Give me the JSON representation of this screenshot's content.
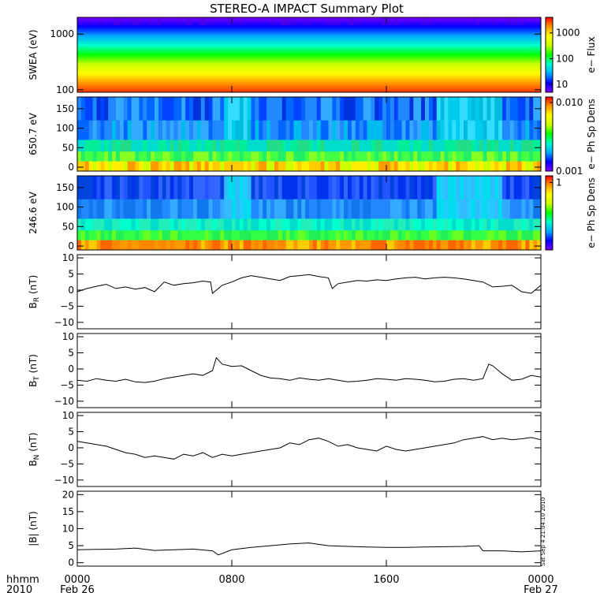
{
  "title": "STEREO-A IMPACT Summary Plot",
  "x_axis": {
    "row1_label": "hhmm",
    "row2_label": "2010",
    "ticks": [
      {
        "hours": 0,
        "time": "0000",
        "date": "Feb 26"
      },
      {
        "hours": 8,
        "time": "0800",
        "date": ""
      },
      {
        "hours": 16,
        "time": "1600",
        "date": ""
      },
      {
        "hours": 24,
        "time": "0000",
        "date": "Feb 27"
      }
    ],
    "range_hours": [
      0,
      24
    ]
  },
  "timestamp_note": "Sat Sep  4 21:04:10 2010",
  "chart_data": [
    {
      "type": "heatmap",
      "ylabel": "SWEA (eV)",
      "yscale": "log",
      "ylim": [
        90,
        2000
      ],
      "yticks": [
        {
          "v": 100,
          "label": "100"
        },
        {
          "v": 1000,
          "label": "1000"
        }
      ],
      "colorbar": {
        "label": "e− Flux",
        "scale": "log",
        "range": [
          5,
          4000
        ],
        "ticks": [
          {
            "v": 10,
            "label": "10"
          },
          {
            "v": 100,
            "label": "100"
          },
          {
            "v": 1000,
            "label": "1000"
          }
        ],
        "colors": [
          "#7f00ff",
          "#0000ff",
          "#00aaff",
          "#00ffcc",
          "#00ff00",
          "#ccff00",
          "#ffff00",
          "#ff9900",
          "#ff0000"
        ]
      },
      "bands_top_to_bottom": [
        "#7f00ff",
        "#0000ff",
        "#00aaff",
        "#00ffcc",
        "#00ff00",
        "#ccff00",
        "#ffff00",
        "#ff9900",
        "#ff3300"
      ]
    },
    {
      "type": "heatmap",
      "ylabel": "650.7 eV",
      "ylim": [
        -10,
        180
      ],
      "yticks": [
        {
          "v": 0,
          "label": "0"
        },
        {
          "v": 50,
          "label": "50"
        },
        {
          "v": 100,
          "label": "100"
        },
        {
          "v": 150,
          "label": "150"
        }
      ],
      "colorbar": {
        "label": "e− Ph Sp Dens",
        "scale": "log",
        "range": [
          0.001,
          0.012
        ],
        "ticks": [
          {
            "v": 0.001,
            "label": "0.001"
          },
          {
            "v": 0.01,
            "label": "0.010"
          }
        ],
        "colors": [
          "#7f00ff",
          "#0000ff",
          "#00aaff",
          "#00ffcc",
          "#00ff00",
          "#ccff00",
          "#ffff00",
          "#ff9900",
          "#ff0000"
        ]
      }
    },
    {
      "type": "heatmap",
      "ylabel": "246.6 eV",
      "ylim": [
        -10,
        180
      ],
      "yticks": [
        {
          "v": 0,
          "label": "0"
        },
        {
          "v": 50,
          "label": "50"
        },
        {
          "v": 100,
          "label": "100"
        },
        {
          "v": 150,
          "label": "150"
        }
      ],
      "colorbar": {
        "label": "e− Ph Sp Dens",
        "scale": "linear",
        "range": [
          0,
          1.1
        ],
        "ticks": [
          {
            "v": 1,
            "label": "1"
          }
        ],
        "colors": [
          "#7f00ff",
          "#0000ff",
          "#00aaff",
          "#00ffcc",
          "#00ff00",
          "#ccff00",
          "#ffff00",
          "#ff9900",
          "#ff0000"
        ]
      }
    },
    {
      "type": "line",
      "ylabel_main": "B",
      "ylabel_sub": "R",
      "ylabel_unit": " (nT)",
      "ylim": [
        -12,
        11
      ],
      "yticks": [
        {
          "v": -10,
          "label": "−10"
        },
        {
          "v": -5,
          "label": "−5"
        },
        {
          "v": 0,
          "label": "0"
        },
        {
          "v": 5,
          "label": "5"
        },
        {
          "v": 10,
          "label": "10"
        }
      ],
      "x": [
        0,
        0.5,
        1,
        1.5,
        2,
        2.5,
        3,
        3.5,
        4,
        4.5,
        5,
        5.5,
        6,
        6.5,
        6.9,
        7,
        7.5,
        8,
        8.5,
        9,
        9.5,
        10,
        10.5,
        11,
        11.5,
        12,
        12.5,
        13,
        13.2,
        13.5,
        14,
        14.5,
        15,
        15.5,
        16,
        16.5,
        17,
        17.5,
        18,
        18.5,
        19,
        19.5,
        20,
        20.5,
        21,
        21.5,
        22,
        22.5,
        23,
        23.5,
        24
      ],
      "y": [
        -0.5,
        0.5,
        1.2,
        1.8,
        0.5,
        1,
        0.3,
        0.8,
        -0.5,
        2.5,
        1.5,
        2,
        2.3,
        2.8,
        2.5,
        -1,
        1.5,
        2.5,
        3.8,
        4.5,
        4,
        3.5,
        3,
        4.2,
        4.5,
        4.8,
        4.2,
        3.8,
        0.5,
        2,
        2.5,
        3,
        2.8,
        3.2,
        3,
        3.5,
        3.8,
        4,
        3.5,
        3.8,
        4,
        3.8,
        3.5,
        3,
        2.5,
        1,
        1.2,
        1.5,
        -0.5,
        -1,
        1.5
      ]
    },
    {
      "type": "line",
      "ylabel_main": "B",
      "ylabel_sub": "T",
      "ylabel_unit": " (nT)",
      "ylim": [
        -12,
        11
      ],
      "yticks": [
        {
          "v": -10,
          "label": "−10"
        },
        {
          "v": -5,
          "label": "−5"
        },
        {
          "v": 0,
          "label": "0"
        },
        {
          "v": 5,
          "label": "5"
        },
        {
          "v": 10,
          "label": "10"
        }
      ],
      "x": [
        0,
        0.5,
        1,
        1.5,
        2,
        2.5,
        3,
        3.5,
        4,
        4.5,
        5,
        5.5,
        6,
        6.5,
        7,
        7.2,
        7.5,
        8,
        8.5,
        9,
        9.5,
        10,
        10.5,
        11,
        11.5,
        12,
        12.5,
        13,
        13.5,
        14,
        14.5,
        15,
        15.5,
        16,
        16.5,
        17,
        17.5,
        18,
        18.5,
        19,
        19.5,
        20,
        20.5,
        21,
        21.3,
        21.5,
        22,
        22.5,
        23,
        23.5,
        24
      ],
      "y": [
        -3.5,
        -3.8,
        -3,
        -3.5,
        -3.8,
        -3.2,
        -4,
        -4.2,
        -3.8,
        -3,
        -2.5,
        -2,
        -1.5,
        -2,
        -0.5,
        3.5,
        1.5,
        0.8,
        1,
        -0.5,
        -2,
        -2.8,
        -3,
        -3.5,
        -2.8,
        -3.2,
        -3.5,
        -3,
        -3.5,
        -4,
        -3.8,
        -3.5,
        -3,
        -3.2,
        -3.5,
        -3,
        -3.2,
        -3.5,
        -4,
        -3.8,
        -3.2,
        -3,
        -3.5,
        -3,
        1.5,
        1,
        -1.5,
        -3.5,
        -3.2,
        -2,
        -2.5
      ]
    },
    {
      "type": "line",
      "ylabel_main": "B",
      "ylabel_sub": "N",
      "ylabel_unit": " (nT)",
      "ylim": [
        -12,
        11
      ],
      "yticks": [
        {
          "v": -10,
          "label": "−10"
        },
        {
          "v": -5,
          "label": "−5"
        },
        {
          "v": 0,
          "label": "0"
        },
        {
          "v": 5,
          "label": "5"
        },
        {
          "v": 10,
          "label": "10"
        }
      ],
      "x": [
        0,
        0.5,
        1,
        1.5,
        2,
        2.5,
        3,
        3.5,
        4,
        4.5,
        5,
        5.5,
        6,
        6.5,
        7,
        7.5,
        8,
        8.5,
        9,
        9.5,
        10,
        10.5,
        11,
        11.5,
        12,
        12.5,
        13,
        13.5,
        14,
        14.5,
        15,
        15.5,
        16,
        16.5,
        17,
        17.5,
        18,
        18.5,
        19,
        19.5,
        20,
        20.5,
        21,
        21.5,
        22,
        22.5,
        23,
        23.5,
        24
      ],
      "y": [
        2,
        1.5,
        1,
        0.5,
        -0.5,
        -1.5,
        -2,
        -3,
        -2.5,
        -3,
        -3.5,
        -2,
        -2.5,
        -1.5,
        -3,
        -2,
        -2.5,
        -2,
        -1.5,
        -1,
        -0.5,
        0,
        1.5,
        1,
        2.5,
        3,
        2,
        0.5,
        1,
        0,
        -0.5,
        -1,
        0.5,
        -0.5,
        -1,
        -0.5,
        0,
        0.5,
        1,
        1.5,
        2.5,
        3,
        3.5,
        2.5,
        3,
        2.5,
        2.8,
        3.2,
        2.5
      ]
    },
    {
      "type": "line",
      "ylabel": "|B| (nT)",
      "ylim": [
        -1,
        21
      ],
      "yticks": [
        {
          "v": 0,
          "label": "0"
        },
        {
          "v": 5,
          "label": "5"
        },
        {
          "v": 10,
          "label": "10"
        },
        {
          "v": 15,
          "label": "15"
        },
        {
          "v": 20,
          "label": "20"
        }
      ],
      "x": [
        0,
        1,
        2,
        3,
        4,
        5,
        6,
        7,
        7.3,
        8,
        9,
        10,
        11,
        12,
        13,
        14,
        15,
        16,
        17,
        18,
        19,
        20,
        20.8,
        21,
        22,
        23,
        24
      ],
      "y": [
        3.8,
        3.9,
        4,
        4.3,
        3.6,
        3.8,
        4,
        3.5,
        2.3,
        3.8,
        4.5,
        5,
        5.5,
        5.8,
        5,
        4.8,
        4.6,
        4.5,
        4.5,
        4.6,
        4.7,
        4.8,
        5,
        3.5,
        3.5,
        3.2,
        3.5
      ]
    }
  ]
}
